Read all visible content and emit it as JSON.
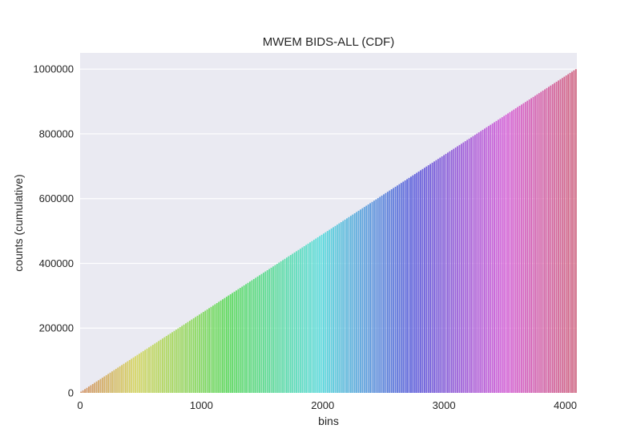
{
  "chart_data": {
    "type": "bar",
    "title": "MWEM BIDS-ALL (CDF)",
    "xlabel": "bins",
    "ylabel": "counts (cumulative)",
    "x_ticks": [
      0,
      1000,
      2000,
      3000,
      4000
    ],
    "x_tick_labels": [
      "0",
      "1000",
      "2000",
      "3000",
      "4000"
    ],
    "y_ticks": [
      0,
      200000,
      400000,
      600000,
      800000,
      1000000
    ],
    "y_tick_labels": [
      "0",
      "200000",
      "400000",
      "600000",
      "800000",
      "1000000"
    ],
    "xlim": [
      0,
      4096
    ],
    "ylim": [
      0,
      1050000
    ],
    "grid": true,
    "series": [
      {
        "x_start": 0,
        "x_end": 4096,
        "x_step": 16,
        "y_start": 0,
        "y_end": 1000000
      }
    ]
  }
}
